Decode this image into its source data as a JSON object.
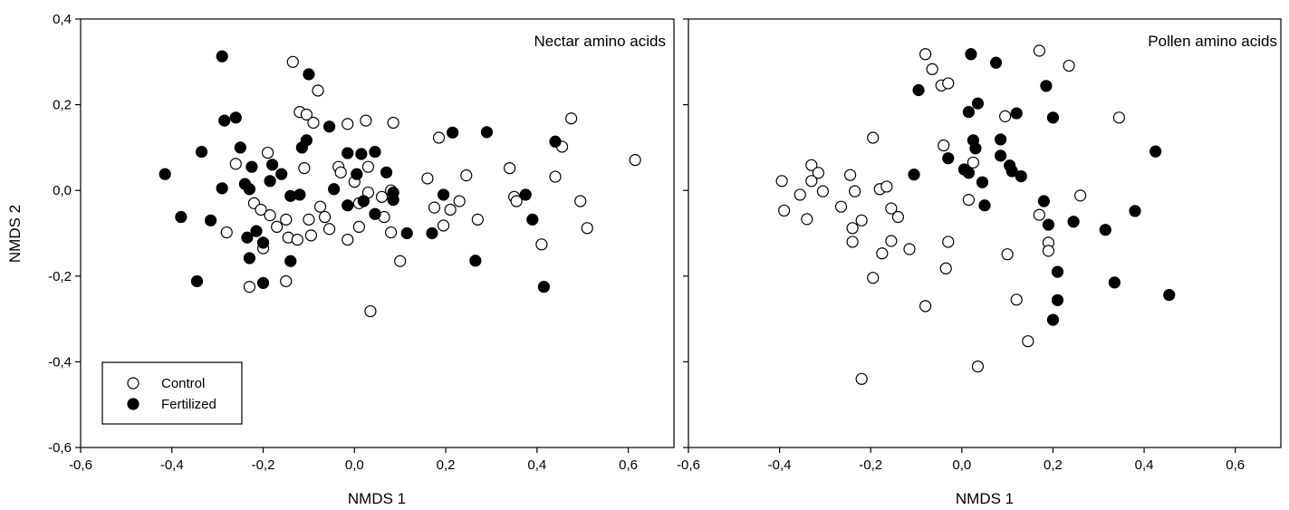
{
  "figure": {
    "ylabel": "NMDS 2",
    "xlabel_left": "NMDS 1",
    "xlabel_right": "NMDS 1",
    "legend": {
      "control_label": "Control",
      "fertilized_label": "Fertilized"
    }
  },
  "chart_data": [
    {
      "type": "scatter",
      "title": "Nectar amino acids",
      "xlabel": "NMDS 1",
      "ylabel": "NMDS 2",
      "xlim": [
        -0.6,
        0.7
      ],
      "ylim": [
        -0.6,
        0.4
      ],
      "xticks": [
        "-0,6",
        "-0,4",
        "-0,2",
        "0,0",
        "0,2",
        "0,4",
        "0,6"
      ],
      "yticks": [
        "-0,6",
        "-0,4",
        "-0,2",
        "0,0",
        "0,2",
        "0,4"
      ],
      "legend": {
        "placement": "bottom-left"
      },
      "series": [
        {
          "name": "Control",
          "marker": "open-circle",
          "points": [
            [
              -0.135,
              0.3
            ],
            [
              -0.08,
              0.233
            ],
            [
              -0.12,
              0.183
            ],
            [
              -0.105,
              0.177
            ],
            [
              -0.09,
              0.158
            ],
            [
              -0.015,
              0.155
            ],
            [
              0.025,
              0.163
            ],
            [
              0.085,
              0.158
            ],
            [
              0.475,
              0.168
            ],
            [
              -0.26,
              0.062
            ],
            [
              -0.19,
              0.088
            ],
            [
              -0.11,
              0.052
            ],
            [
              -0.035,
              0.055
            ],
            [
              -0.03,
              0.042
            ],
            [
              0.0,
              0.02
            ],
            [
              0.03,
              0.055
            ],
            [
              0.185,
              0.123
            ],
            [
              0.455,
              0.102
            ],
            [
              0.615,
              0.071
            ],
            [
              0.16,
              0.028
            ],
            [
              0.245,
              0.035
            ],
            [
              0.34,
              0.052
            ],
            [
              0.44,
              0.032
            ],
            [
              -0.22,
              -0.03
            ],
            [
              -0.205,
              -0.045
            ],
            [
              -0.185,
              -0.058
            ],
            [
              -0.17,
              -0.085
            ],
            [
              -0.15,
              -0.068
            ],
            [
              -0.145,
              -0.11
            ],
            [
              -0.125,
              -0.115
            ],
            [
              -0.1,
              -0.068
            ],
            [
              -0.095,
              -0.105
            ],
            [
              -0.075,
              -0.038
            ],
            [
              -0.065,
              -0.062
            ],
            [
              -0.055,
              -0.09
            ],
            [
              0.01,
              -0.03
            ],
            [
              0.03,
              -0.005
            ],
            [
              0.06,
              -0.015
            ],
            [
              0.065,
              -0.062
            ],
            [
              0.08,
              0.0
            ],
            [
              0.175,
              -0.04
            ],
            [
              0.21,
              -0.045
            ],
            [
              0.23,
              -0.025
            ],
            [
              0.195,
              -0.082
            ],
            [
              0.27,
              -0.068
            ],
            [
              0.35,
              -0.015
            ],
            [
              0.355,
              -0.025
            ],
            [
              0.495,
              -0.025
            ],
            [
              0.51,
              -0.088
            ],
            [
              -0.28,
              -0.098
            ],
            [
              -0.2,
              -0.135
            ],
            [
              -0.23,
              -0.225
            ],
            [
              -0.15,
              -0.212
            ],
            [
              -0.015,
              -0.115
            ],
            [
              0.01,
              -0.085
            ],
            [
              0.08,
              -0.098
            ],
            [
              0.1,
              -0.165
            ],
            [
              0.035,
              -0.282
            ],
            [
              0.41,
              -0.126
            ]
          ]
        },
        {
          "name": "Fertilized",
          "marker": "filled-circle",
          "points": [
            [
              -0.29,
              0.313
            ],
            [
              -0.1,
              0.271
            ],
            [
              -0.285,
              0.163
            ],
            [
              -0.26,
              0.17
            ],
            [
              -0.055,
              0.149
            ],
            [
              -0.105,
              0.117
            ],
            [
              -0.115,
              0.1
            ],
            [
              0.215,
              0.135
            ],
            [
              0.29,
              0.136
            ],
            [
              0.44,
              0.114
            ],
            [
              -0.335,
              0.09
            ],
            [
              -0.25,
              0.1
            ],
            [
              -0.225,
              0.055
            ],
            [
              -0.18,
              0.06
            ],
            [
              -0.16,
              0.038
            ],
            [
              -0.015,
              0.087
            ],
            [
              0.015,
              0.085
            ],
            [
              0.045,
              0.09
            ],
            [
              0.005,
              0.038
            ],
            [
              0.07,
              0.042
            ],
            [
              -0.415,
              0.038
            ],
            [
              -0.29,
              0.005
            ],
            [
              -0.24,
              0.015
            ],
            [
              -0.23,
              0.003
            ],
            [
              -0.185,
              0.022
            ],
            [
              -0.045,
              0.003
            ],
            [
              -0.14,
              -0.013
            ],
            [
              -0.12,
              -0.01
            ],
            [
              -0.015,
              -0.035
            ],
            [
              0.02,
              -0.025
            ],
            [
              0.045,
              -0.055
            ],
            [
              0.085,
              -0.005
            ],
            [
              0.085,
              -0.022
            ],
            [
              0.195,
              -0.01
            ],
            [
              0.375,
              -0.01
            ],
            [
              -0.38,
              -0.062
            ],
            [
              -0.315,
              -0.07
            ],
            [
              -0.235,
              -0.11
            ],
            [
              -0.215,
              -0.095
            ],
            [
              -0.2,
              -0.122
            ],
            [
              -0.23,
              -0.158
            ],
            [
              0.115,
              -0.1
            ],
            [
              0.17,
              -0.1
            ],
            [
              0.39,
              -0.068
            ],
            [
              -0.14,
              -0.165
            ],
            [
              -0.345,
              -0.212
            ],
            [
              -0.2,
              -0.216
            ],
            [
              0.265,
              -0.164
            ],
            [
              0.415,
              -0.225
            ]
          ]
        }
      ]
    },
    {
      "type": "scatter",
      "title": "Pollen amino acids",
      "xlabel": "NMDS 1",
      "ylabel": "",
      "xlim": [
        -0.6,
        0.7
      ],
      "ylim": [
        -0.6,
        0.4
      ],
      "xticks": [
        "-0,6",
        "-0,4",
        "-0,2",
        "0,0",
        "0,2",
        "0,4",
        "0,6"
      ],
      "yticks": [],
      "series": [
        {
          "name": "Control",
          "marker": "open-circle",
          "points": [
            [
              -0.08,
              0.318
            ],
            [
              0.17,
              0.326
            ],
            [
              0.235,
              0.291
            ],
            [
              -0.065,
              0.283
            ],
            [
              -0.045,
              0.245
            ],
            [
              -0.03,
              0.25
            ],
            [
              0.095,
              0.173
            ],
            [
              0.345,
              0.17
            ],
            [
              -0.195,
              0.123
            ],
            [
              -0.04,
              0.105
            ],
            [
              0.025,
              0.065
            ],
            [
              -0.33,
              0.059
            ],
            [
              -0.315,
              0.041
            ],
            [
              -0.245,
              0.036
            ],
            [
              -0.395,
              0.022
            ],
            [
              -0.33,
              0.022
            ],
            [
              -0.305,
              -0.002
            ],
            [
              -0.235,
              -0.002
            ],
            [
              -0.18,
              0.003
            ],
            [
              -0.165,
              0.009
            ],
            [
              -0.355,
              -0.01
            ],
            [
              -0.39,
              -0.047
            ],
            [
              -0.34,
              -0.067
            ],
            [
              -0.265,
              -0.038
            ],
            [
              -0.155,
              -0.042
            ],
            [
              -0.14,
              -0.062
            ],
            [
              -0.22,
              -0.07
            ],
            [
              -0.24,
              -0.088
            ],
            [
              -0.24,
              -0.12
            ],
            [
              -0.155,
              -0.118
            ],
            [
              -0.175,
              -0.147
            ],
            [
              -0.115,
              -0.137
            ],
            [
              0.015,
              -0.022
            ],
            [
              0.26,
              -0.012
            ],
            [
              0.17,
              -0.057
            ],
            [
              0.19,
              -0.122
            ],
            [
              0.19,
              -0.141
            ],
            [
              -0.03,
              -0.12
            ],
            [
              -0.035,
              -0.182
            ],
            [
              -0.195,
              -0.204
            ],
            [
              0.1,
              -0.149
            ],
            [
              0.12,
              -0.255
            ],
            [
              -0.08,
              -0.27
            ],
            [
              0.145,
              -0.352
            ],
            [
              0.035,
              -0.411
            ],
            [
              -0.22,
              -0.44
            ]
          ]
        },
        {
          "name": "Fertilized",
          "marker": "filled-circle",
          "points": [
            [
              0.02,
              0.318
            ],
            [
              0.075,
              0.298
            ],
            [
              -0.095,
              0.234
            ],
            [
              0.185,
              0.244
            ],
            [
              0.035,
              0.203
            ],
            [
              0.015,
              0.183
            ],
            [
              0.12,
              0.18
            ],
            [
              0.2,
              0.17
            ],
            [
              0.025,
              0.117
            ],
            [
              0.03,
              0.098
            ],
            [
              0.085,
              0.119
            ],
            [
              -0.03,
              0.075
            ],
            [
              0.085,
              0.081
            ],
            [
              0.425,
              0.091
            ],
            [
              0.005,
              0.049
            ],
            [
              0.015,
              0.041
            ],
            [
              0.105,
              0.058
            ],
            [
              0.11,
              0.045
            ],
            [
              -0.105,
              0.037
            ],
            [
              0.045,
              0.019
            ],
            [
              0.13,
              0.033
            ],
            [
              0.18,
              -0.025
            ],
            [
              0.05,
              -0.035
            ],
            [
              0.19,
              -0.08
            ],
            [
              0.245,
              -0.073
            ],
            [
              0.38,
              -0.048
            ],
            [
              0.315,
              -0.092
            ],
            [
              0.21,
              -0.19
            ],
            [
              0.21,
              -0.256
            ],
            [
              0.335,
              -0.215
            ],
            [
              0.455,
              -0.244
            ],
            [
              0.2,
              -0.302
            ]
          ]
        }
      ]
    }
  ]
}
